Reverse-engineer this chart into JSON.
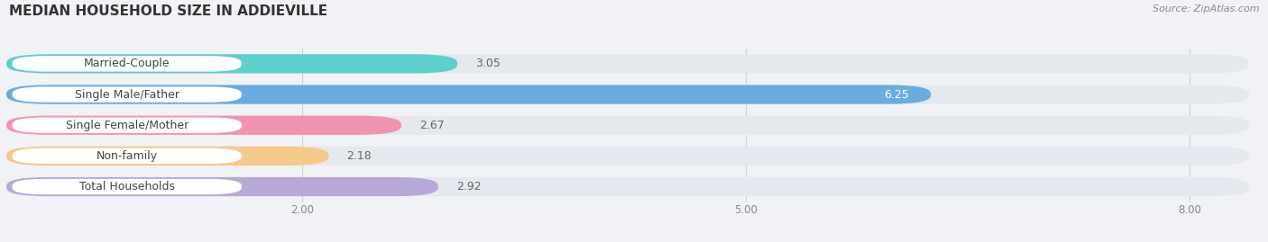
{
  "title": "MEDIAN HOUSEHOLD SIZE IN ADDIEVILLE",
  "source": "Source: ZipAtlas.com",
  "categories": [
    "Married-Couple",
    "Single Male/Father",
    "Single Female/Mother",
    "Non-family",
    "Total Households"
  ],
  "values": [
    3.05,
    6.25,
    2.67,
    2.18,
    2.92
  ],
  "bar_colors": [
    "#5ecfca",
    "#6aace0",
    "#f093b0",
    "#f5c98a",
    "#b8a8d8"
  ],
  "label_bg_colors": [
    "#ffffff",
    "#ffffff",
    "#ffffff",
    "#ffffff",
    "#ffffff"
  ],
  "xlim_data": [
    0,
    8.4
  ],
  "xlim_display": [
    0,
    8.4
  ],
  "xticks": [
    2.0,
    5.0,
    8.0
  ],
  "background_color": "#f0f2f5",
  "bar_background_color": "#e6e8f0",
  "title_fontsize": 11,
  "label_fontsize": 9,
  "value_fontsize": 9,
  "bar_height": 0.62,
  "bar_gap": 0.38,
  "value_label_color_inside": "#ffffff",
  "value_label_color_outside": "#666666",
  "grid_color": "#d0d0d8",
  "title_color": "#333333",
  "source_color": "#888899"
}
